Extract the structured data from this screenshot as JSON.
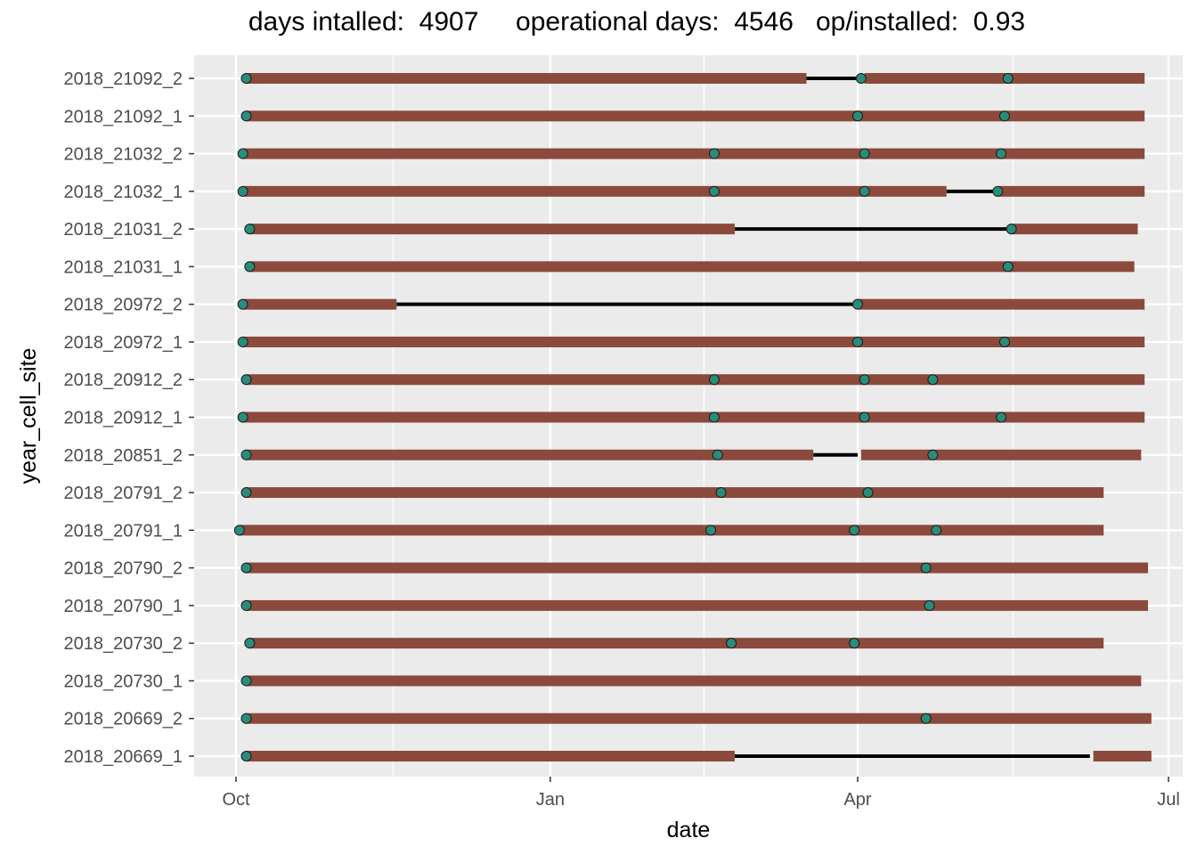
{
  "chart_data": {
    "type": "timeline",
    "title": "days intalled:  4907     operational days:  4546   op/installed:  0.93",
    "xlabel": "date",
    "ylabel": "year_cell_site",
    "x_ticks": [
      {
        "label": "Oct",
        "date": "2018-10-01"
      },
      {
        "label": "Jan",
        "date": "2019-01-01"
      },
      {
        "label": "Apr",
        "date": "2019-04-01"
      },
      {
        "label": "Jul",
        "date": "2019-07-01"
      }
    ],
    "xlim": [
      "2018-09-20",
      "2019-07-05"
    ],
    "colors": {
      "panel": "#ebebeb",
      "grid": "#ffffff",
      "operational": "#8B4A3C",
      "gap": "#000000",
      "marker_fill": "#2A8C7A",
      "marker_stroke": "#1a1a1a"
    },
    "rows": [
      {
        "name": "2018_21092_2",
        "operational": [
          [
            "2018-10-04",
            "2019-03-17"
          ],
          [
            "2019-04-03",
            "2019-06-24"
          ]
        ],
        "gaps": [
          [
            "2019-03-17",
            "2019-04-01"
          ]
        ],
        "markers": [
          "2018-10-04",
          "2019-04-02",
          "2019-05-15"
        ]
      },
      {
        "name": "2018_21092_1",
        "operational": [
          [
            "2018-10-04",
            "2019-06-24"
          ]
        ],
        "gaps": [],
        "markers": [
          "2018-10-04",
          "2019-04-01",
          "2019-05-14"
        ]
      },
      {
        "name": "2018_21032_2",
        "operational": [
          [
            "2018-10-03",
            "2019-06-24"
          ]
        ],
        "gaps": [],
        "markers": [
          "2018-10-03",
          "2019-02-18",
          "2019-04-03",
          "2019-05-13"
        ]
      },
      {
        "name": "2018_21032_1",
        "operational": [
          [
            "2018-10-03",
            "2019-04-27"
          ],
          [
            "2019-05-12",
            "2019-06-24"
          ]
        ],
        "gaps": [
          [
            "2019-04-27",
            "2019-05-12"
          ]
        ],
        "markers": [
          "2018-10-03",
          "2019-02-18",
          "2019-04-03",
          "2019-05-12"
        ]
      },
      {
        "name": "2018_21031_2",
        "operational": [
          [
            "2018-10-05",
            "2019-02-24"
          ],
          [
            "2019-05-16",
            "2019-06-22"
          ]
        ],
        "gaps": [
          [
            "2019-02-24",
            "2019-05-16"
          ]
        ],
        "markers": [
          "2018-10-05",
          "2019-05-16"
        ]
      },
      {
        "name": "2018_21031_1",
        "operational": [
          [
            "2018-10-05",
            "2019-06-21"
          ]
        ],
        "gaps": [],
        "markers": [
          "2018-10-05",
          "2019-05-15"
        ]
      },
      {
        "name": "2018_20972_2",
        "operational": [
          [
            "2018-10-03",
            "2018-11-17"
          ],
          [
            "2019-04-01",
            "2019-06-24"
          ]
        ],
        "gaps": [
          [
            "2018-11-17",
            "2019-04-01"
          ]
        ],
        "markers": [
          "2018-10-03",
          "2019-04-01"
        ]
      },
      {
        "name": "2018_20972_1",
        "operational": [
          [
            "2018-10-03",
            "2019-06-24"
          ]
        ],
        "gaps": [],
        "markers": [
          "2018-10-03",
          "2019-04-01",
          "2019-05-14"
        ]
      },
      {
        "name": "2018_20912_2",
        "operational": [
          [
            "2018-10-04",
            "2019-06-24"
          ]
        ],
        "gaps": [],
        "markers": [
          "2018-10-04",
          "2019-02-18",
          "2019-04-03",
          "2019-04-23"
        ]
      },
      {
        "name": "2018_20912_1",
        "operational": [
          [
            "2018-10-03",
            "2019-06-24"
          ]
        ],
        "gaps": [],
        "markers": [
          "2018-10-03",
          "2019-02-18",
          "2019-04-03",
          "2019-05-13"
        ]
      },
      {
        "name": "2018_20851_2",
        "operational": [
          [
            "2018-10-04",
            "2019-03-19"
          ],
          [
            "2019-04-02",
            "2019-06-23"
          ]
        ],
        "gaps": [
          [
            "2019-03-19",
            "2019-04-01"
          ]
        ],
        "markers": [
          "2018-10-04",
          "2019-02-19",
          "2019-04-23"
        ]
      },
      {
        "name": "2018_20791_2",
        "operational": [
          [
            "2018-10-04",
            "2019-06-12"
          ]
        ],
        "gaps": [],
        "markers": [
          "2018-10-04",
          "2019-02-20",
          "2019-04-04"
        ]
      },
      {
        "name": "2018_20791_1",
        "operational": [
          [
            "2018-10-02",
            "2019-06-12"
          ]
        ],
        "gaps": [],
        "markers": [
          "2018-10-02",
          "2019-02-17",
          "2019-03-31",
          "2019-04-24"
        ]
      },
      {
        "name": "2018_20790_2",
        "operational": [
          [
            "2018-10-04",
            "2019-06-25"
          ]
        ],
        "gaps": [],
        "markers": [
          "2018-10-04",
          "2019-04-21"
        ]
      },
      {
        "name": "2018_20790_1",
        "operational": [
          [
            "2018-10-04",
            "2019-06-25"
          ]
        ],
        "gaps": [],
        "markers": [
          "2018-10-04",
          "2019-04-22"
        ]
      },
      {
        "name": "2018_20730_2",
        "operational": [
          [
            "2018-10-05",
            "2019-06-12"
          ]
        ],
        "gaps": [],
        "markers": [
          "2018-10-05",
          "2019-02-23",
          "2019-03-31"
        ]
      },
      {
        "name": "2018_20730_1",
        "operational": [
          [
            "2018-10-04",
            "2019-06-23"
          ]
        ],
        "gaps": [],
        "markers": [
          "2018-10-04"
        ]
      },
      {
        "name": "2018_20669_2",
        "operational": [
          [
            "2018-10-04",
            "2019-06-26"
          ]
        ],
        "gaps": [],
        "markers": [
          "2018-10-04",
          "2019-04-21"
        ]
      },
      {
        "name": "2018_20669_1",
        "operational": [
          [
            "2018-10-04",
            "2019-02-24"
          ],
          [
            "2019-06-09",
            "2019-06-26"
          ]
        ],
        "gaps": [
          [
            "2019-02-24",
            "2019-06-08"
          ]
        ],
        "markers": [
          "2018-10-04"
        ]
      }
    ]
  }
}
